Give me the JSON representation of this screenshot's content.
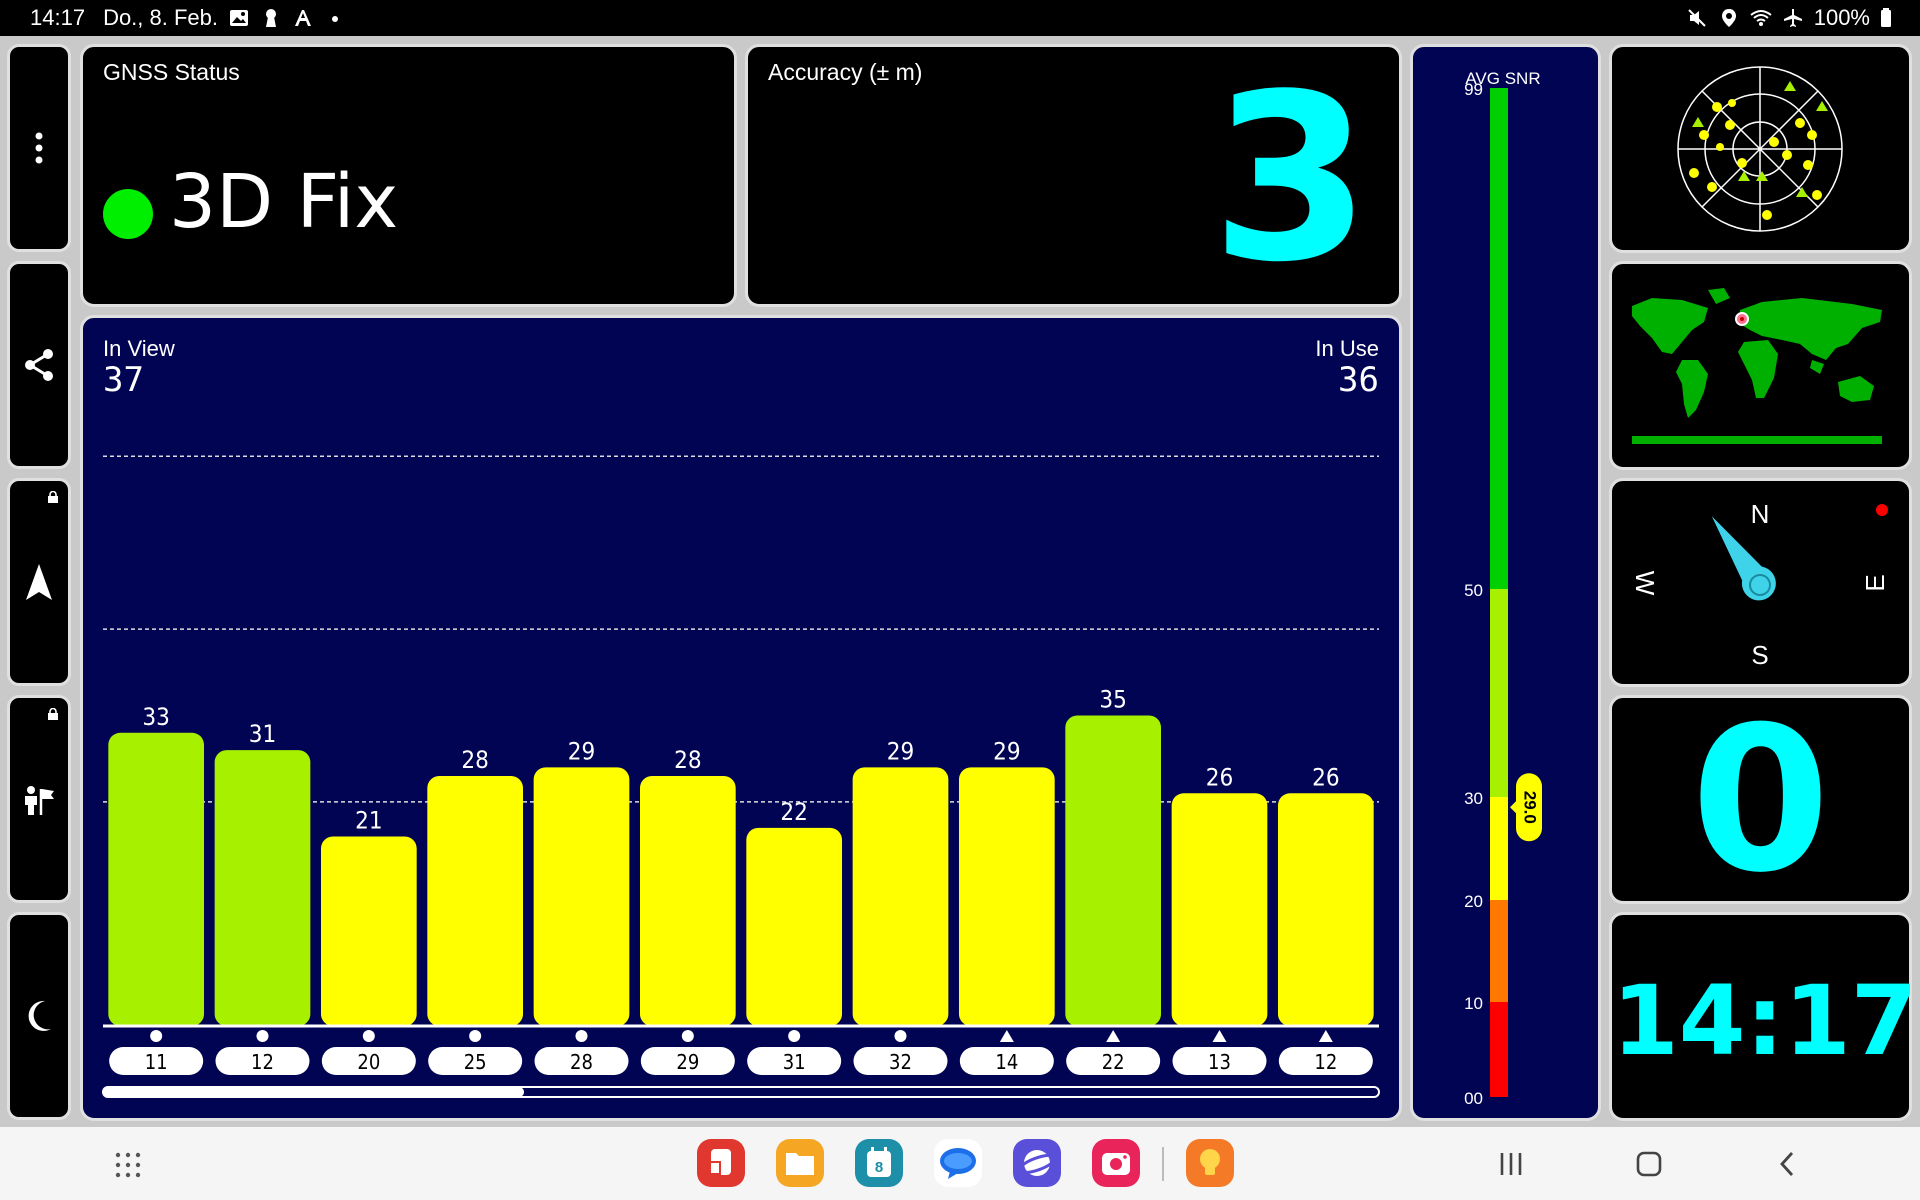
{
  "status_bar": {
    "time": "14:17",
    "date": "Do., 8. Feb.",
    "battery": "100%",
    "icons_left": [
      "gallery-icon",
      "keyhole-icon",
      "auto-text-icon",
      "dot-icon"
    ],
    "icons_right": [
      "mute-icon",
      "location-icon",
      "wifi-icon",
      "airplane-icon",
      "battery-icon"
    ]
  },
  "rail": {
    "items": [
      {
        "name": "menu-button",
        "icon": "more-vert-icon",
        "locked": false
      },
      {
        "name": "share-button",
        "icon": "share-icon",
        "locked": false
      },
      {
        "name": "navigation-button",
        "icon": "navigation-arrow-icon",
        "locked": true
      },
      {
        "name": "poi-button",
        "icon": "person-flag-icon",
        "locked": true
      },
      {
        "name": "night-mode-button",
        "icon": "moon-icon",
        "locked": false
      }
    ]
  },
  "gnss_status": {
    "title": "GNSS Status",
    "fix": "3D Fix",
    "fix_color": "#00ee00"
  },
  "accuracy": {
    "title": "Accuracy (± m)",
    "value": "3"
  },
  "satellites": {
    "in_view_label": "In View",
    "in_view": "37",
    "in_use_label": "In Use",
    "in_use": "36",
    "scroll_fraction": 0.33
  },
  "chart_data": {
    "type": "bar",
    "categories": [
      "11",
      "12",
      "20",
      "25",
      "28",
      "29",
      "31",
      "32",
      "14",
      "22",
      "13",
      "12"
    ],
    "constellation_markers": [
      "circle",
      "circle",
      "circle",
      "circle",
      "circle",
      "circle",
      "circle",
      "circle",
      "triangle",
      "triangle",
      "triangle",
      "triangle"
    ],
    "values": [
      33,
      31,
      21,
      28,
      29,
      28,
      22,
      29,
      29,
      35,
      26,
      26
    ],
    "ylim": [
      0,
      70
    ],
    "grid_lines": [
      25,
      45,
      65
    ],
    "colors": {
      "high": "#a6f000",
      "mid": "#ffff00"
    }
  },
  "snr_scale": {
    "title": "AVG SNR",
    "ticks": [
      "99",
      "50",
      "30",
      "20",
      "10",
      "00"
    ],
    "avg": "29.0",
    "avg_value": 29.0,
    "colors": {
      "green": "#00d000",
      "lime": "#a6f000",
      "yellow": "#ffff00",
      "orange": "#ff7800",
      "red": "#ff0000"
    }
  },
  "compass": {
    "n": "N",
    "e": "E",
    "s": "S",
    "w": "W",
    "heading_deg": -35,
    "accent": "#3ed3e8"
  },
  "speed": {
    "value": "0"
  },
  "clock": {
    "value": "14:17"
  },
  "navbar": {
    "apps": [
      "app-drawer-icon",
      "notes-app-icon",
      "files-app-icon",
      "calendar-app-icon",
      "messages-app-icon",
      "browser-app-icon",
      "screen-recorder-app-icon",
      "tips-app-icon"
    ],
    "calendar_day": "8"
  }
}
